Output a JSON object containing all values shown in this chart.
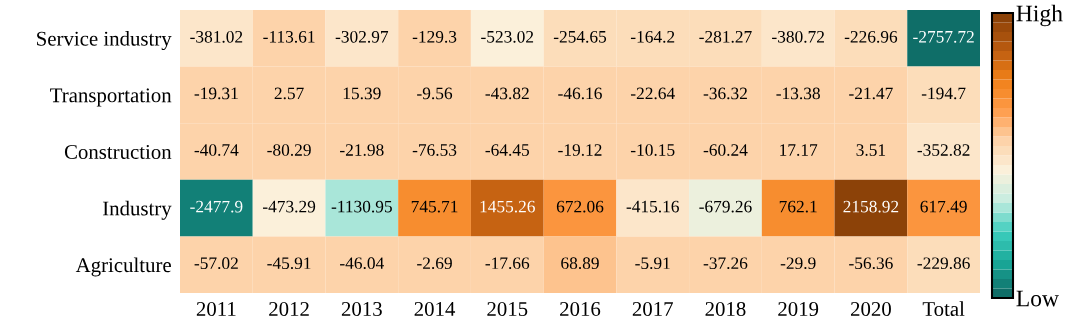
{
  "chart_data": {
    "type": "heatmap",
    "categories": [
      "2011",
      "2012",
      "2013",
      "2014",
      "2015",
      "2016",
      "2017",
      "2018",
      "2019",
      "2020",
      "Total"
    ],
    "y_categories": [
      "Service industry",
      "Transportation",
      "Construction",
      "Industry",
      "Agriculture"
    ],
    "cells": [
      [
        -381.02,
        -113.61,
        -302.97,
        -129.3,
        -523.02,
        -254.65,
        -164.2,
        -281.27,
        -380.72,
        -226.96,
        -2757.72
      ],
      [
        -19.31,
        2.57,
        15.39,
        -9.56,
        -43.82,
        -46.16,
        -22.64,
        -36.32,
        -13.38,
        -21.47,
        -194.7
      ],
      [
        -40.74,
        -80.29,
        -21.98,
        -76.53,
        -64.45,
        -19.12,
        -10.15,
        -60.24,
        17.17,
        3.51,
        -352.82
      ],
      [
        -2477.9,
        -473.29,
        -1130.95,
        745.71,
        1455.26,
        672.06,
        -415.16,
        -679.26,
        762.1,
        2158.92,
        617.49
      ],
      [
        -57.02,
        -45.91,
        -46.04,
        -2.69,
        -17.66,
        68.89,
        -5.91,
        -37.26,
        -29.9,
        -56.36,
        -229.86
      ]
    ],
    "data_labels": true,
    "clim": [
      -2757.72,
      2158.92
    ],
    "cticks": [
      {
        "value": -2757.72,
        "label": "Low"
      },
      {
        "value": 2158.92,
        "label": "High"
      }
    ]
  }
}
